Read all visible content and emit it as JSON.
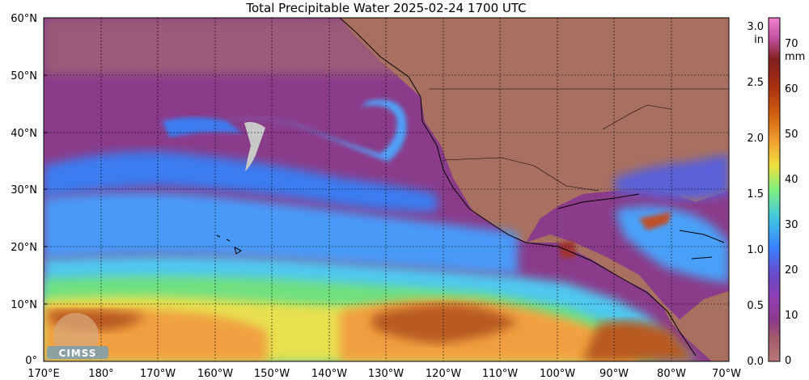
{
  "title": "Total Precipitable Water  2025-02-24 1700 UTC",
  "lat_ticks": [
    "60°N",
    "50°N",
    "40°N",
    "30°N",
    "20°N",
    "10°N",
    "0°"
  ],
  "lon_ticks": [
    "170°E",
    "180°",
    "170°W",
    "160°W",
    "150°W",
    "140°W",
    "130°W",
    "120°W",
    "110°W",
    "100°W",
    "90°W",
    "80°W",
    "70°W"
  ],
  "colorbar": {
    "in_unit": "in",
    "mm_unit": "mm",
    "in_ticks": [
      "3.0",
      "2.5",
      "2.0",
      "1.5",
      "1.0",
      "0.5",
      "0.0"
    ],
    "mm_ticks": [
      "70",
      "60",
      "50",
      "40",
      "30",
      "20",
      "10",
      "0"
    ],
    "colors": [
      "#b87878",
      "#a05a6a",
      "#8a3a8a",
      "#9040b0",
      "#6a48c8",
      "#3a80ff",
      "#40c8e0",
      "#80f080",
      "#f0e040",
      "#f0a030",
      "#d06010",
      "#a83010",
      "#802020",
      "#c050a0",
      "#f080d0"
    ]
  },
  "logo": {
    "text": "CIMSS"
  },
  "colors": {
    "land": "#a87060",
    "dry_purple": "#8a3c8a",
    "mid_purple": "#7a3aa8",
    "blue": "#3a7cf0",
    "cyan": "#50c8f0",
    "green": "#70e080",
    "yellow": "#e8e050",
    "orange": "#f0a040",
    "brown": "#b85a20",
    "grey_patch": "#c8c8c8"
  }
}
